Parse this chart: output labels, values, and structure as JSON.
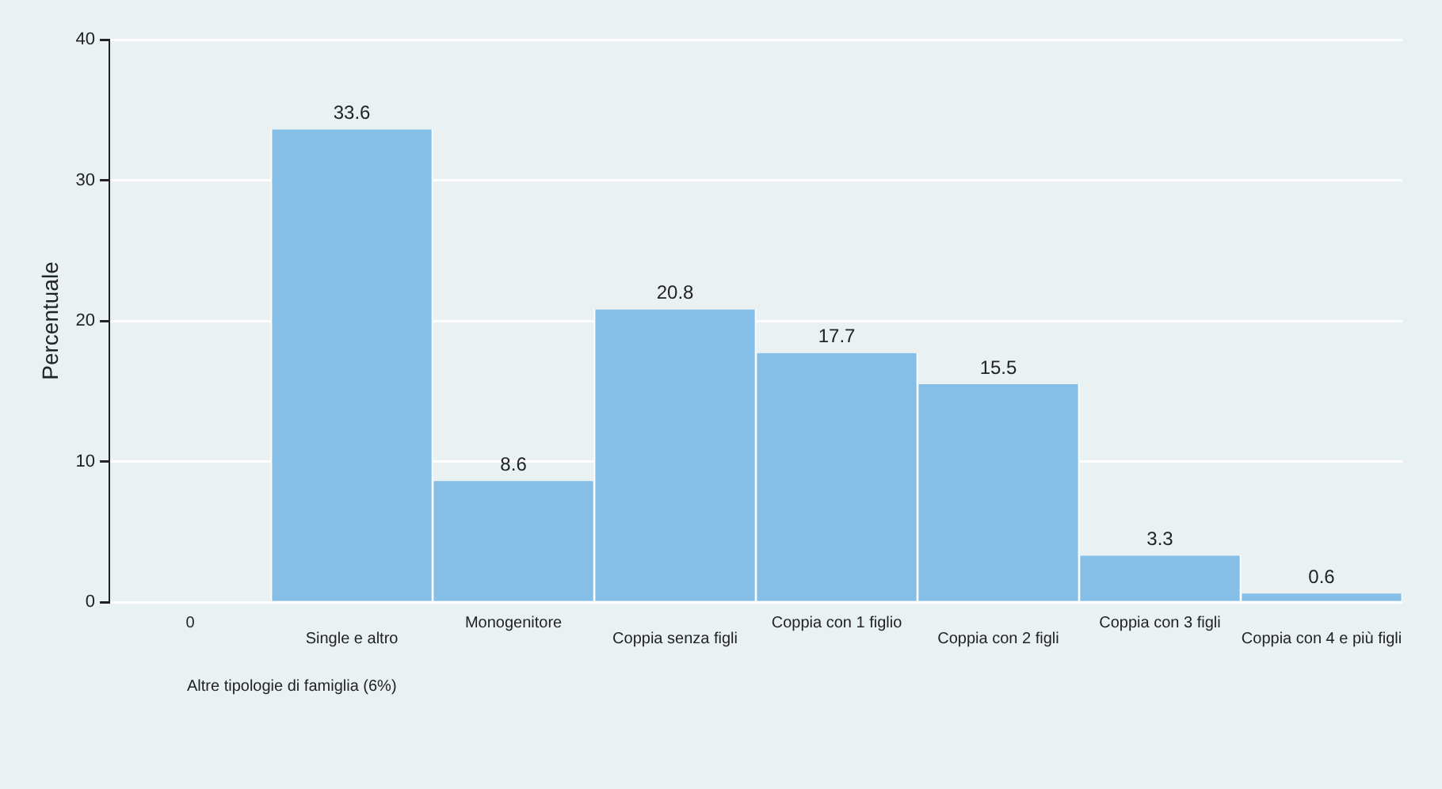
{
  "chart_data": {
    "type": "bar",
    "ylabel": "Percentuale",
    "categories": [
      "0",
      "Single e altro",
      "Monogenitore",
      "Coppia senza figli",
      "Coppia con 1 figlio",
      "Coppia con 2 figli",
      "Coppia con 3 figli",
      "Coppia con 4 e più figli"
    ],
    "values": [
      null,
      33.6,
      8.6,
      20.8,
      17.7,
      15.5,
      3.3,
      0.6
    ],
    "color": "#85bfe8",
    "ylim": [
      0,
      40
    ],
    "yticks": [
      0,
      10,
      20,
      30,
      40
    ],
    "grid": "y",
    "data_labels": true,
    "annotations": [
      "Altre tipologie di famiglia (6%)"
    ]
  }
}
